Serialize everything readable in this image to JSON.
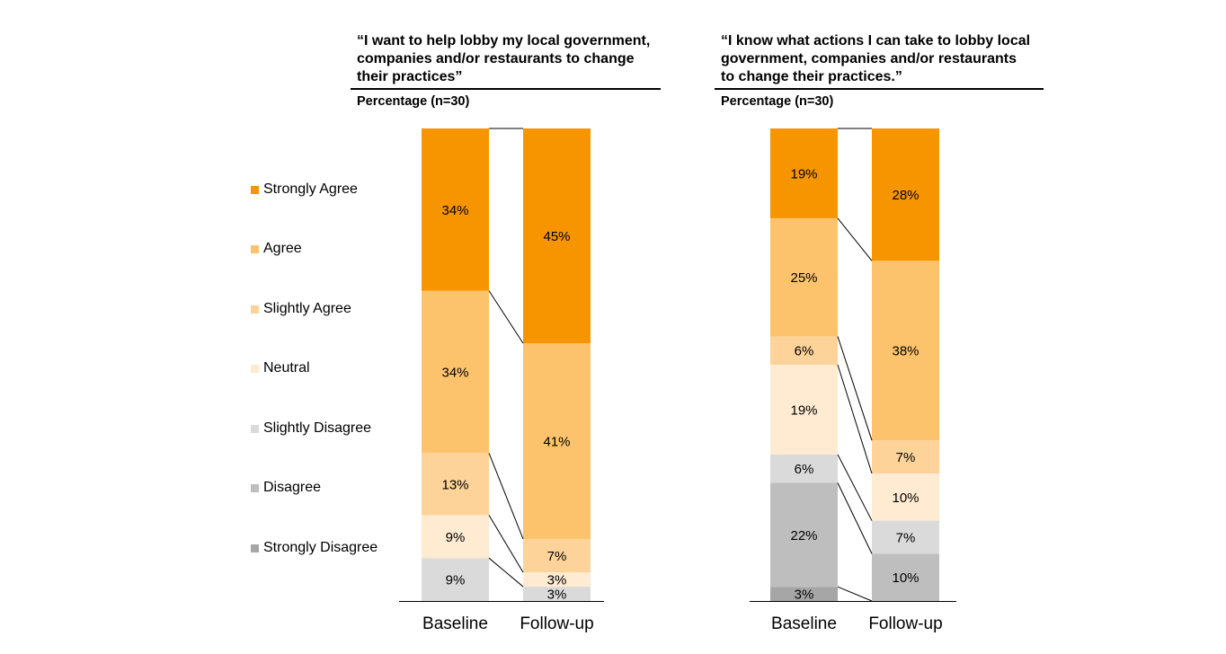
{
  "legend": [
    {
      "label": "Strongly Agree",
      "color": "#F79500"
    },
    {
      "label": "Agree",
      "color": "#FCC36C"
    },
    {
      "label": "Slightly Agree",
      "color": "#FDD39A"
    },
    {
      "label": "Neutral",
      "color": "#FEEBD1"
    },
    {
      "label": "Slightly Disagree",
      "color": "#DADADA"
    },
    {
      "label": "Disagree",
      "color": "#BEBEBE"
    },
    {
      "label": "Strongly Disagree",
      "color": "#A6A6A6"
    }
  ],
  "panels": [
    {
      "title": "“I want to help lobby my local government, companies and/or restaurants to change their practices”",
      "subtitle": "Percentage (n=30)"
    },
    {
      "title": "“I know what actions I can take to lobby local government, companies and/or restaurants to change their practices.”",
      "subtitle": "Percentage (n=30)"
    }
  ],
  "chart_data": [
    {
      "type": "bar",
      "stacked": true,
      "normalized": "100%",
      "title": "“I want to help lobby my local government, companies and/or restaurants to change their practices”",
      "subtitle": "Percentage (n=30)",
      "categories": [
        "Baseline",
        "Follow-up"
      ],
      "series": [
        {
          "name": "Strongly Disagree",
          "values": [
            0,
            0
          ],
          "labels": [
            "",
            ""
          ],
          "color": "#A6A6A6"
        },
        {
          "name": "Disagree",
          "values": [
            0,
            0
          ],
          "labels": [
            "",
            ""
          ],
          "color": "#BEBEBE"
        },
        {
          "name": "Slightly Disagree",
          "values": [
            9,
            3
          ],
          "labels": [
            "9%",
            "3%"
          ],
          "color": "#DADADA"
        },
        {
          "name": "Neutral",
          "values": [
            9,
            3
          ],
          "labels": [
            "9%",
            "3%"
          ],
          "color": "#FEEBD1"
        },
        {
          "name": "Slightly Agree",
          "values": [
            13,
            7
          ],
          "labels": [
            "13%",
            "7%"
          ],
          "color": "#FDD39A"
        },
        {
          "name": "Agree",
          "values": [
            34,
            41
          ],
          "labels": [
            "34%",
            "41%"
          ],
          "color": "#FCC36C"
        },
        {
          "name": "Strongly Agree",
          "values": [
            34,
            45
          ],
          "labels": [
            "34%",
            "45%"
          ],
          "color": "#F79500"
        }
      ],
      "ylim": [
        0,
        100
      ],
      "grid": false,
      "legend_position": "left"
    },
    {
      "type": "bar",
      "stacked": true,
      "normalized": "100%",
      "title": "“I know what actions I can take to lobby local government, companies and/or restaurants to change their practices.”",
      "subtitle": "Percentage (n=30)",
      "categories": [
        "Baseline",
        "Follow-up"
      ],
      "series": [
        {
          "name": "Strongly Disagree",
          "values": [
            3,
            0
          ],
          "labels": [
            "3%",
            ""
          ],
          "color": "#A6A6A6"
        },
        {
          "name": "Disagree",
          "values": [
            22,
            10
          ],
          "labels": [
            "22%",
            "10%"
          ],
          "color": "#BEBEBE"
        },
        {
          "name": "Slightly Disagree",
          "values": [
            6,
            7
          ],
          "labels": [
            "6%",
            "7%"
          ],
          "color": "#DADADA"
        },
        {
          "name": "Neutral",
          "values": [
            19,
            10
          ],
          "labels": [
            "19%",
            "10%"
          ],
          "color": "#FEEBD1"
        },
        {
          "name": "Slightly Agree",
          "values": [
            6,
            7
          ],
          "labels": [
            "6%",
            "7%"
          ],
          "color": "#FDD39A"
        },
        {
          "name": "Agree",
          "values": [
            25,
            38
          ],
          "labels": [
            "25%",
            "38%"
          ],
          "color": "#FCC36C"
        },
        {
          "name": "Strongly Agree",
          "values": [
            19,
            28
          ],
          "labels": [
            "19%",
            "28%"
          ],
          "color": "#F79500"
        }
      ],
      "ylim": [
        0,
        100
      ],
      "grid": false,
      "legend_position": "left"
    }
  ]
}
